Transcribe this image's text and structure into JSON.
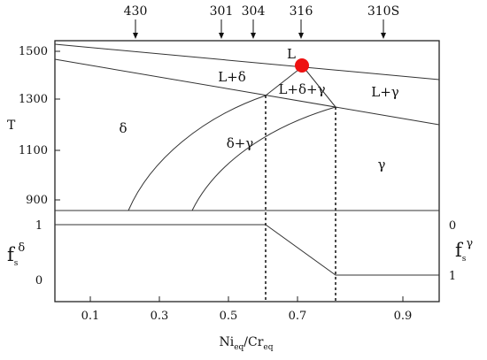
{
  "steel_grades": [
    "430",
    "301",
    "304",
    "316",
    "310S"
  ],
  "phase_labels": {
    "liquid": "L",
    "l_delta": "L+δ",
    "l_delta_gamma": "L+δ+γ",
    "l_gamma": "L+γ",
    "delta": "δ",
    "delta_gamma": "δ+γ",
    "gamma": "γ"
  },
  "y_axis": {
    "label": "T",
    "ticks": [
      "1500",
      "1300",
      "1100",
      "900"
    ]
  },
  "fraction_axes": {
    "left_main": "f",
    "left_sub": "s",
    "left_sup": "δ",
    "left_ticks": [
      "1",
      "0"
    ],
    "right_main": "f",
    "right_sub": "s",
    "right_sup": "γ",
    "right_ticks": [
      "0",
      "1"
    ]
  },
  "x_axis": {
    "ticks": [
      "0.1",
      "0.3",
      "0.5",
      "0.7",
      "0.9"
    ],
    "label_ni": "Ni",
    "label_ni_sub": "eq",
    "label_sep": "/Cr",
    "label_cr_sub": "eq"
  },
  "colors": {
    "marker": "#ee1111",
    "lines": "#333333"
  }
}
